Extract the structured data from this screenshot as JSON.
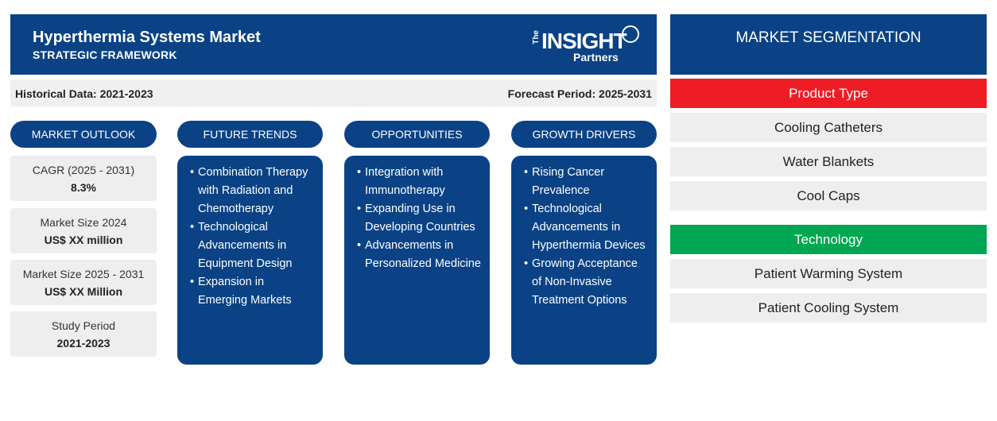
{
  "header": {
    "title": "Hyperthermia Systems Market",
    "subtitle": "STRATEGIC FRAMEWORK",
    "logo": {
      "the": "The",
      "insight": "INSIGHT",
      "partners": "Partners"
    }
  },
  "periods": {
    "historical": "Historical Data: 2021-2023",
    "forecast": "Forecast Period: 2025-2031"
  },
  "columns": {
    "outlook": "MARKET OUTLOOK",
    "trends": "FUTURE TRENDS",
    "opportunities": "OPPORTUNITIES",
    "drivers": "GROWTH DRIVERS"
  },
  "outlook": [
    {
      "label": "CAGR (2025 - 2031)",
      "value": "8.3%"
    },
    {
      "label": "Market Size 2024",
      "value": "US$ XX million"
    },
    {
      "label": "Market Size 2025 - 2031",
      "value": "US$ XX Million"
    },
    {
      "label": "Study Period",
      "value": "2021-2023"
    }
  ],
  "trends": [
    "Combination Therapy with Radiation and Chemotherapy",
    "Technological Advancements in Equipment Design",
    "Expansion in Emerging Markets"
  ],
  "opportunities": [
    "Integration with Immunotherapy",
    "Expanding Use in Developing Countries",
    "Advancements in Personalized Medicine"
  ],
  "drivers": [
    "Rising Cancer Prevalence",
    "Technological Advancements in Hyperthermia Devices",
    "Growing Acceptance of Non-Invasive Treatment Options"
  ],
  "segmentation": {
    "title": "MARKET SEGMENTATION",
    "groups": [
      {
        "name": "Product Type",
        "color": "#ee1c25",
        "items": [
          "Cooling Catheters",
          "Water Blankets",
          "Cool Caps"
        ]
      },
      {
        "name": "Technology",
        "color": "#00a651",
        "items": [
          "Patient Warming System",
          "Patient Cooling System"
        ]
      }
    ]
  }
}
